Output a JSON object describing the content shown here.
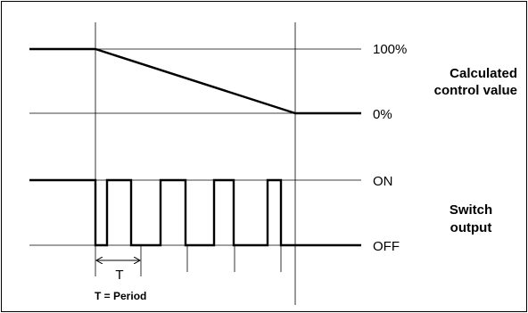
{
  "upper_diagram": {
    "level_high": "100%",
    "level_low": "0%",
    "title_line1": "Calculated",
    "title_line2": "control value"
  },
  "lower_diagram": {
    "level_high": "ON",
    "level_low": "OFF",
    "title_line1": "Switch",
    "title_line2": "output"
  },
  "period": {
    "marker": "T",
    "caption": "T = Period"
  },
  "colors": {
    "line": "#000000",
    "background": "#ffffff"
  }
}
